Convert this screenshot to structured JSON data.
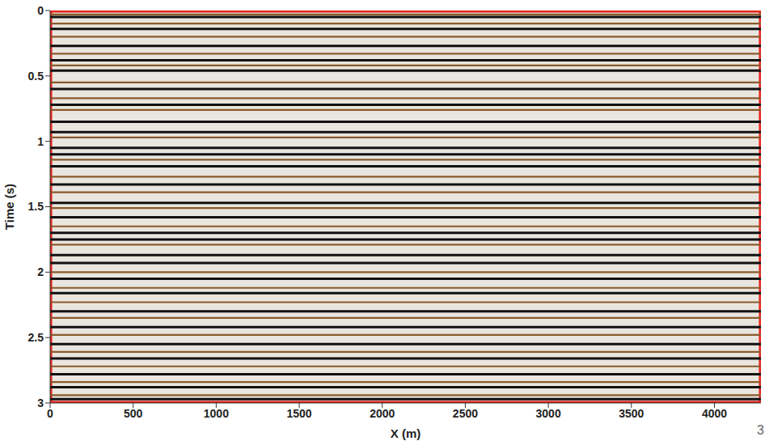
{
  "chart_data": {
    "type": "seismic_section",
    "xlabel": "X (m)",
    "ylabel": "Time (s)",
    "xlim": [
      0,
      4280
    ],
    "xticks": [
      0,
      500,
      1000,
      1500,
      2000,
      2500,
      3000,
      3500,
      4000
    ],
    "ylim": [
      0,
      3
    ],
    "yticks": [
      0,
      0.5,
      1,
      1.5,
      2,
      2.5,
      3
    ],
    "reflectors": {
      "times": [
        0.03,
        0.05,
        0.1,
        0.14,
        0.2,
        0.27,
        0.33,
        0.38,
        0.42,
        0.46,
        0.55,
        0.6,
        0.67,
        0.72,
        0.76,
        0.85,
        0.93,
        0.97,
        1.05,
        1.1,
        1.14,
        1.19,
        1.27,
        1.33,
        1.39,
        1.47,
        1.51,
        1.58,
        1.65,
        1.7,
        1.75,
        1.79,
        1.87,
        1.93,
        2.0,
        2.05,
        2.12,
        2.16,
        2.23,
        2.3,
        2.35,
        2.42,
        2.48,
        2.55,
        2.61,
        2.66,
        2.72,
        2.78,
        2.84,
        2.88,
        2.94,
        2.97
      ],
      "colors": [
        "#8b5a2b",
        "#111111",
        "#8b5a2b",
        "#111111",
        "#8b5a2b",
        "#111111",
        "#8b5a2b",
        "#111111",
        "#8b5a2b",
        "#111111",
        "#8b5a2b",
        "#111111",
        "#8b5a2b",
        "#111111",
        "#8b5a2b",
        "#111111",
        "#111111",
        "#8b5a2b",
        "#111111",
        "#111111",
        "#8b5a2b",
        "#111111",
        "#8b5a2b",
        "#111111",
        "#8b5a2b",
        "#111111",
        "#8b5a2b",
        "#111111",
        "#8b5a2b",
        "#111111",
        "#111111",
        "#8b5a2b",
        "#111111",
        "#111111",
        "#8b5a2b",
        "#111111",
        "#8b5a2b",
        "#111111",
        "#8b5a2b",
        "#111111",
        "#8b5a2b",
        "#111111",
        "#8b5a2b",
        "#111111",
        "#8b5a2b",
        "#111111",
        "#8b5a2b",
        "#111111",
        "#8b5a2b",
        "#111111",
        "#8b5a2b",
        "#111111"
      ]
    },
    "frame_color": "#e8211a",
    "annotations": [
      "3"
    ]
  }
}
